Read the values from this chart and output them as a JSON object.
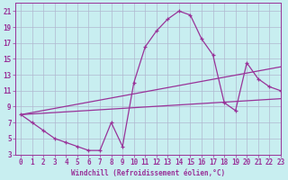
{
  "xlabel": "Windchill (Refroidissement éolien,°C)",
  "bg_color": "#c8eef0",
  "line_color": "#993399",
  "grid_color": "#b0b8d0",
  "plot_bg": "#c8eef0",
  "curve_x": [
    0,
    1,
    2,
    3,
    4,
    5,
    6,
    7,
    8,
    9,
    10,
    11,
    12,
    13,
    14,
    15,
    16,
    17,
    18,
    19,
    20,
    21,
    22,
    23
  ],
  "curve_y": [
    8,
    7,
    6,
    5,
    4.5,
    4,
    3.5,
    3.5,
    7,
    4,
    12,
    16.5,
    18.5,
    20,
    21,
    20.5,
    17.5,
    15.5,
    9.5,
    8.5,
    14.5,
    12.5,
    11.5,
    11
  ],
  "line2_x": [
    0,
    23
  ],
  "line2_y": [
    8,
    14
  ],
  "line3_x": [
    0,
    23
  ],
  "line3_y": [
    8,
    10
  ],
  "xlim": [
    -0.5,
    23
  ],
  "ylim": [
    3,
    22
  ],
  "yticks": [
    3,
    5,
    7,
    9,
    11,
    13,
    15,
    17,
    19,
    21
  ],
  "xticks": [
    0,
    1,
    2,
    3,
    4,
    5,
    6,
    7,
    8,
    9,
    10,
    11,
    12,
    13,
    14,
    15,
    16,
    17,
    18,
    19,
    20,
    21,
    22,
    23
  ]
}
